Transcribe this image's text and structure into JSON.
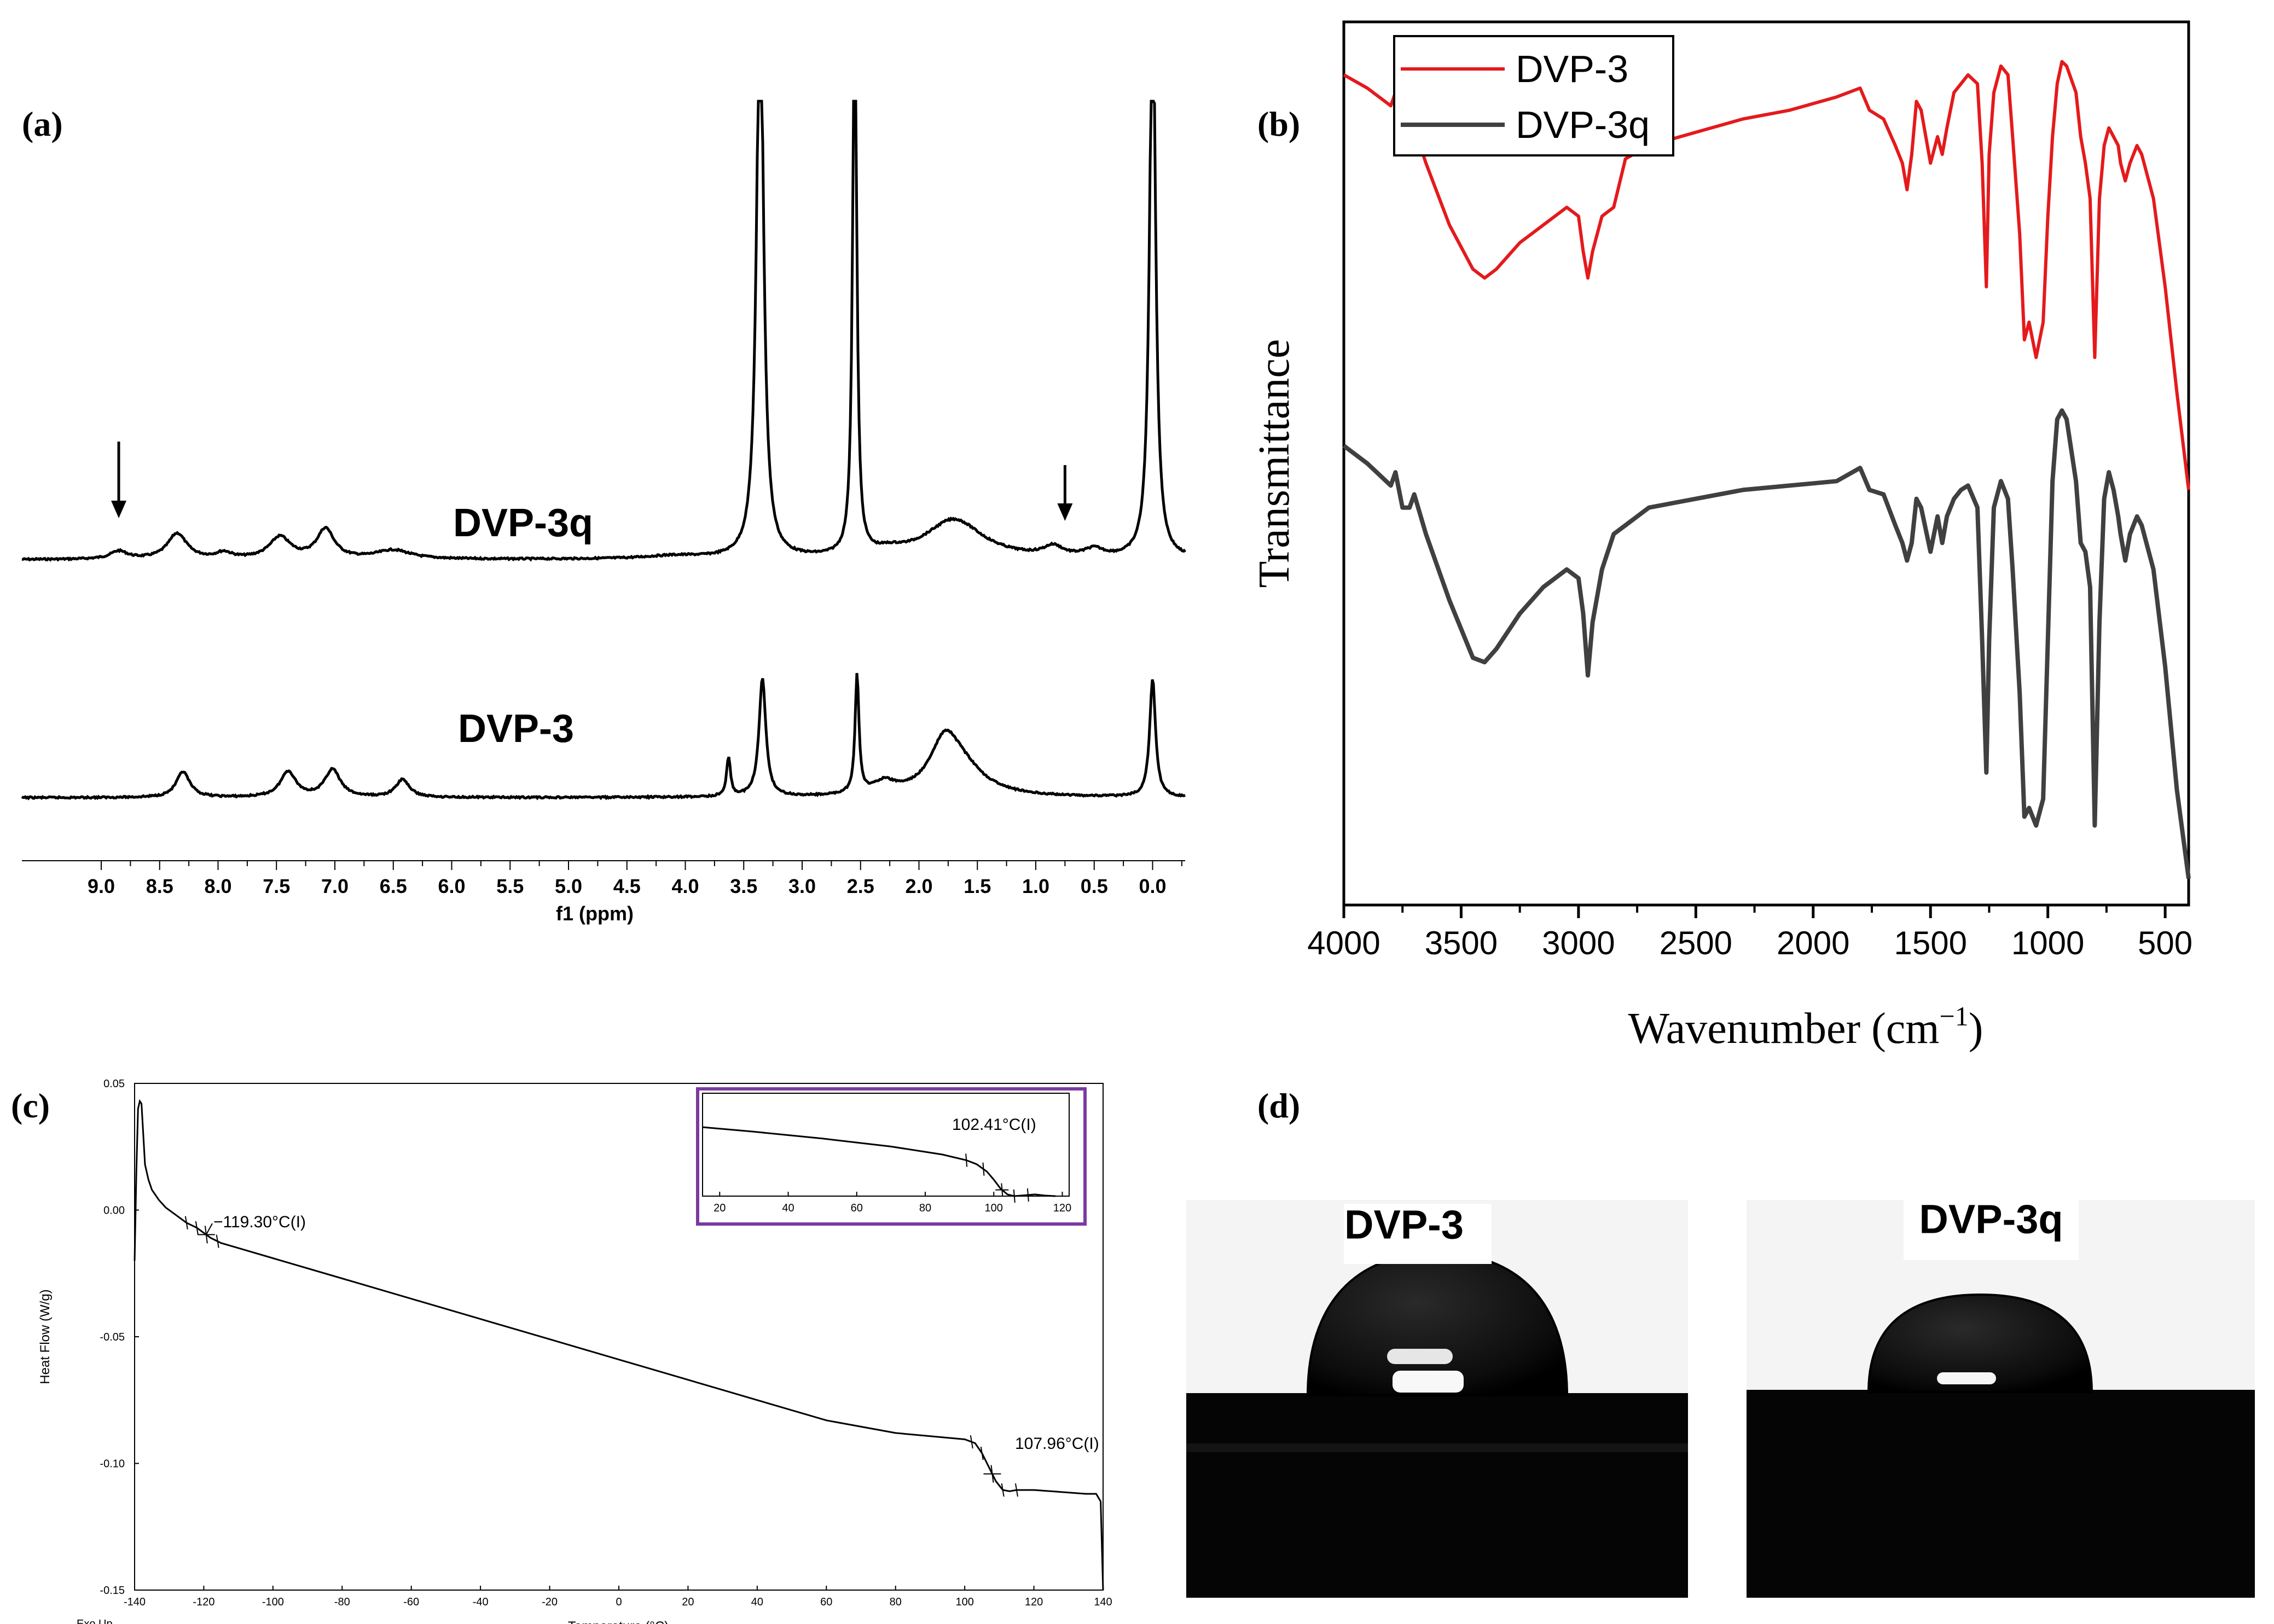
{
  "figure": {
    "panels": {
      "a": "(a)",
      "b": "(b)",
      "c": "(c)",
      "d": "(d)"
    }
  },
  "chart_data": [
    {
      "id": "a",
      "type": "line",
      "title": "",
      "xlabel": "f1 (ppm)",
      "ylabel": "",
      "xlim": [
        9.5,
        -0.5
      ],
      "xticks": [
        "9.0",
        "8.5",
        "8.0",
        "7.5",
        "7.0",
        "6.5",
        "6.0",
        "5.5",
        "5.0",
        "4.5",
        "4.0",
        "3.5",
        "3.0",
        "2.5",
        "2.0",
        "1.5",
        "1.0",
        "0.5",
        "0.0"
      ],
      "series": [
        {
          "name": "DVP-3q",
          "color": "#000000",
          "peaks": [
            {
              "ppm": 8.85,
              "height": 0.08,
              "width": 0.09
            },
            {
              "ppm": 8.35,
              "height": 0.26,
              "width": 0.1
            },
            {
              "ppm": 7.95,
              "height": 0.06,
              "width": 0.08
            },
            {
              "ppm": 7.47,
              "height": 0.22,
              "width": 0.11
            },
            {
              "ppm": 7.08,
              "height": 0.3,
              "width": 0.09
            },
            {
              "ppm": 6.5,
              "height": 0.09,
              "width": 0.18
            },
            {
              "ppm": 4.1,
              "height": 0.03,
              "width": 0.3
            },
            {
              "ppm": 3.36,
              "height": 6.0,
              "width": 0.035
            },
            {
              "ppm": 2.55,
              "height": 6.0,
              "width": 0.02
            },
            {
              "ppm": 2.25,
              "height": 0.05,
              "width": 0.15
            },
            {
              "ppm": 1.7,
              "height": 0.4,
              "width": 0.3
            },
            {
              "ppm": 0.85,
              "height": 0.1,
              "width": 0.1
            },
            {
              "ppm": 0.5,
              "height": 0.08,
              "width": 0.1
            },
            {
              "ppm": 0.0,
              "height": 6.0,
              "width": 0.03
            }
          ],
          "arrows_ppm": [
            8.85,
            0.75
          ]
        },
        {
          "name": "DVP-3",
          "color": "#000000",
          "peaks": [
            {
              "ppm": 8.3,
              "height": 0.26,
              "width": 0.07
            },
            {
              "ppm": 7.4,
              "height": 0.26,
              "width": 0.08
            },
            {
              "ppm": 7.02,
              "height": 0.28,
              "width": 0.08
            },
            {
              "ppm": 6.42,
              "height": 0.18,
              "width": 0.07
            },
            {
              "ppm": 3.63,
              "height": 0.4,
              "width": 0.02
            },
            {
              "ppm": 3.34,
              "height": 1.2,
              "width": 0.035
            },
            {
              "ppm": 2.53,
              "height": 1.2,
              "width": 0.02
            },
            {
              "ppm": 2.3,
              "height": 0.12,
              "width": 0.12
            },
            {
              "ppm": 1.78,
              "height": 0.45,
              "width": 0.15
            },
            {
              "ppm": 1.65,
              "height": 0.28,
              "width": 0.25
            },
            {
              "ppm": 0.0,
              "height": 1.2,
              "width": 0.03
            }
          ]
        }
      ]
    },
    {
      "id": "b",
      "type": "line",
      "title": "",
      "xlabel": "Wavenumber (cm",
      "xlabel_sup": "−1",
      "xlabel_suffix": ")",
      "ylabel": "Transmittance",
      "xlim": [
        4000,
        400
      ],
      "xticks": [
        "4000",
        "3500",
        "3000",
        "2500",
        "2000",
        "1500",
        "1000",
        "500"
      ],
      "ylim": [
        0,
        100
      ],
      "legend_position": "top-left",
      "series": [
        {
          "name": "DVP-3",
          "color": "#e41a1c",
          "x": [
            4000,
            3900,
            3800,
            3780,
            3750,
            3720,
            3700,
            3650,
            3550,
            3450,
            3400,
            3350,
            3250,
            3150,
            3050,
            3000,
            2980,
            2960,
            2940,
            2900,
            2850,
            2800,
            2700,
            2500,
            2300,
            2100,
            1900,
            1800,
            1760,
            1700,
            1650,
            1620,
            1600,
            1580,
            1560,
            1540,
            1500,
            1470,
            1450,
            1430,
            1400,
            1370,
            1340,
            1300,
            1280,
            1262,
            1250,
            1230,
            1200,
            1170,
            1150,
            1120,
            1100,
            1080,
            1050,
            1020,
            1000,
            980,
            960,
            940,
            920,
            880,
            860,
            840,
            820,
            800,
            780,
            760,
            740,
            720,
            700,
            690,
            670,
            650,
            620,
            600,
            550,
            500,
            450,
            400
          ],
          "y": [
            94,
            92.5,
            90.5,
            92,
            89,
            87.5,
            88,
            84,
            77,
            72,
            71,
            72,
            75,
            77,
            79,
            78,
            74,
            71,
            74,
            78,
            79,
            84.5,
            86,
            87.5,
            89,
            90,
            91.5,
            92.5,
            90,
            89,
            86,
            84,
            81,
            85,
            91,
            90,
            84,
            87,
            85,
            88,
            92,
            93,
            94,
            93,
            84,
            70,
            85,
            92,
            95,
            94,
            87,
            76,
            64,
            66,
            62,
            66,
            78,
            87,
            93,
            95.5,
            95,
            92,
            87,
            84,
            80,
            62,
            80,
            86,
            88,
            87,
            86,
            84,
            82,
            84,
            86,
            85,
            80,
            70,
            58,
            47
          ]
        },
        {
          "name": "DVP-3q",
          "color": "#404040",
          "x": [
            4000,
            3900,
            3800,
            3780,
            3750,
            3720,
            3700,
            3650,
            3550,
            3450,
            3400,
            3350,
            3250,
            3150,
            3050,
            3000,
            2980,
            2960,
            2940,
            2900,
            2850,
            2800,
            2700,
            2500,
            2300,
            2100,
            1900,
            1800,
            1760,
            1700,
            1650,
            1620,
            1600,
            1580,
            1560,
            1540,
            1500,
            1470,
            1450,
            1430,
            1400,
            1370,
            1340,
            1300,
            1280,
            1262,
            1250,
            1230,
            1200,
            1170,
            1150,
            1120,
            1100,
            1080,
            1050,
            1020,
            1000,
            980,
            960,
            940,
            920,
            880,
            860,
            840,
            820,
            800,
            780,
            760,
            740,
            720,
            700,
            690,
            670,
            650,
            620,
            600,
            550,
            500,
            450,
            400
          ],
          "y": [
            52,
            50,
            47.5,
            49,
            45,
            45,
            46.5,
            42,
            34.5,
            28,
            27.5,
            29,
            33,
            36,
            38,
            37,
            33,
            26,
            32,
            38,
            42,
            43,
            45,
            46,
            47,
            47.5,
            48,
            49.5,
            47,
            46.5,
            43,
            41,
            39,
            41,
            46,
            45,
            40,
            44,
            41,
            44,
            46,
            47,
            47.5,
            45,
            30,
            15,
            30,
            45,
            48,
            46,
            38,
            24,
            10,
            11,
            9,
            12,
            30,
            48,
            55,
            56,
            55,
            48,
            41,
            40,
            36,
            9,
            32,
            46,
            49,
            47,
            44,
            42,
            39,
            42,
            44,
            43,
            38,
            27,
            13,
            3
          ]
        }
      ]
    },
    {
      "id": "c",
      "type": "line",
      "title": "",
      "xlabel": "Temperature (°C)",
      "ylabel": "Heat Flow (W/g)",
      "corner_note": "Exo Up",
      "xlim": [
        -140,
        140
      ],
      "xticks": [
        "-140",
        "-120",
        "-100",
        "-80",
        "-60",
        "-40",
        "-20",
        "0",
        "20",
        "40",
        "60",
        "80",
        "100",
        "120",
        "140"
      ],
      "ylim": [
        -0.15,
        0.05
      ],
      "yticks": [
        "0.05",
        "0.00",
        "-0.05",
        "-0.10",
        "-0.15"
      ],
      "annotations": [
        "−119.30°C(I)",
        "107.96°C(I)"
      ],
      "series": [
        {
          "name": "Heat Flow",
          "color": "#000000",
          "x": [
            -140,
            -139.5,
            -139,
            -138.5,
            -138,
            -137.5,
            -137,
            -136,
            -135,
            -133,
            -131,
            -128,
            -125,
            -122,
            -120,
            -118,
            -115,
            -110,
            -100,
            -80,
            -60,
            -40,
            -20,
            0,
            20,
            40,
            60,
            80,
            100,
            103,
            105,
            107,
            109,
            111,
            113,
            115,
            120,
            125,
            130,
            135,
            138,
            139.3,
            139.7,
            140
          ],
          "y": [
            -0.02,
            0.015,
            0.04,
            0.043,
            0.042,
            0.03,
            0.018,
            0.012,
            0.008,
            0.004,
            0.001,
            -0.002,
            -0.005,
            -0.007,
            -0.009,
            -0.011,
            -0.013,
            -0.015,
            -0.019,
            -0.027,
            -0.035,
            -0.043,
            -0.051,
            -0.059,
            -0.067,
            -0.075,
            -0.083,
            -0.088,
            -0.0905,
            -0.092,
            -0.096,
            -0.1015,
            -0.107,
            -0.1105,
            -0.111,
            -0.1105,
            -0.1105,
            -0.111,
            -0.1115,
            -0.112,
            -0.112,
            -0.115,
            -0.135,
            -0.15
          ]
        }
      ],
      "inset": {
        "xlim": [
          15,
          122
        ],
        "xticks": [
          "20",
          "40",
          "60",
          "80",
          "100",
          "120"
        ],
        "annotation": "102.41°C(I)",
        "border_color": "#7b3aa0",
        "series": [
          {
            "name": "Inset",
            "color": "#000000",
            "x": [
              15,
              30,
              50,
              70,
              85,
              92,
              95,
              98,
              100,
              102,
              104,
              106,
              108,
              112,
              115,
              118
            ],
            "y": [
              0.0,
              -0.008,
              -0.02,
              -0.034,
              -0.048,
              -0.058,
              -0.065,
              -0.078,
              -0.092,
              -0.108,
              -0.118,
              -0.121,
              -0.12,
              -0.118,
              -0.12,
              -0.121
            ]
          }
        ]
      }
    }
  ],
  "photos": {
    "left": {
      "label": "DVP-3"
    },
    "right": {
      "label": "DVP-3q"
    }
  }
}
